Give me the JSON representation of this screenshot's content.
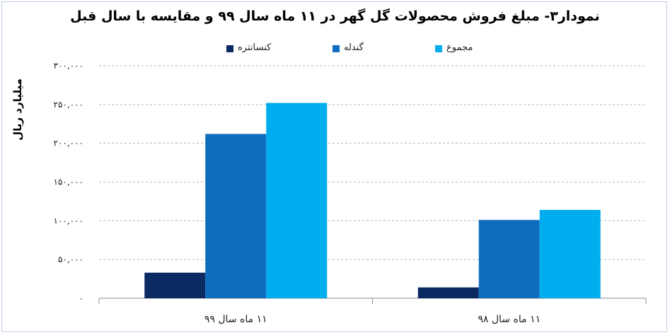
{
  "chart_data": {
    "type": "bar",
    "title": "نمودار۳- مبلغ فروش محصولات گل گهر در ۱۱ ماه سال ۹۹ و مقایسه با سال قبل",
    "ylabel": "میلیارد ریال",
    "xlabel": "",
    "categories": [
      "۱۱ ماه سال ۹۹",
      "۱۱ ماه سال ۹۸"
    ],
    "series": [
      {
        "name": "کنسانتره",
        "color": "#0c2a62",
        "values": [
          33000,
          14000
        ]
      },
      {
        "name": "گندله",
        "color": "#0f6dbd",
        "values": [
          212000,
          101000
        ]
      },
      {
        "name": "مجموع",
        "color": "#00adef",
        "values": [
          252000,
          114000
        ]
      }
    ],
    "ylim": [
      0,
      300000
    ],
    "yticks": [
      0,
      50000,
      100000,
      150000,
      200000,
      250000,
      300000
    ],
    "ytick_labels": [
      "۰",
      "۵۰,۰۰۰",
      "۱۰۰,۰۰۰",
      "۱۵۰,۰۰۰",
      "۲۰۰,۰۰۰",
      "۲۵۰,۰۰۰",
      "۳۰۰,۰۰۰"
    ],
    "grid": true,
    "legend_position": "top"
  }
}
